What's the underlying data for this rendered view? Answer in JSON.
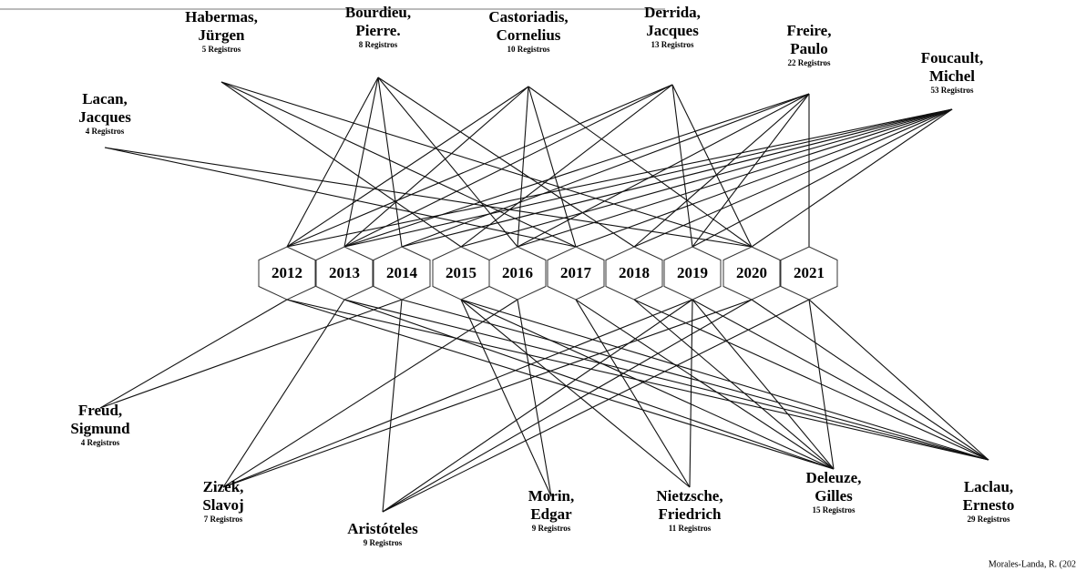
{
  "years": [
    "2012",
    "2013",
    "2014",
    "2015",
    "2016",
    "2017",
    "2018",
    "2019",
    "2020",
    "2021"
  ],
  "top_authors": [
    {
      "name": [
        "Lacan,",
        "Jacques"
      ],
      "records": "4 Registros",
      "links": [
        5,
        8
      ]
    },
    {
      "name": [
        "Habermas,",
        "Jürgen"
      ],
      "records": "5 Registros",
      "links": [
        3,
        5,
        8
      ]
    },
    {
      "name": [
        "Bourdieu,",
        "Pierre."
      ],
      "records": "8 Registros",
      "links": [
        0,
        1,
        2,
        4,
        6
      ]
    },
    {
      "name": [
        "Castoriadis,",
        "Cornelius"
      ],
      "records": "10 Registros",
      "links": [
        0,
        1,
        4,
        5,
        8
      ]
    },
    {
      "name": [
        "Derrida,",
        "Jacques"
      ],
      "records": "13 Registros",
      "links": [
        0,
        1,
        3,
        7,
        8
      ]
    },
    {
      "name": [
        "Freire,",
        "Paulo"
      ],
      "records": "22 Registros",
      "links": [
        1,
        2,
        4,
        6,
        7,
        9
      ]
    },
    {
      "name": [
        "Foucault,",
        "Michel"
      ],
      "records": "53 Registros",
      "links": [
        0,
        1,
        2,
        3,
        4,
        5,
        6,
        7,
        8
      ]
    }
  ],
  "bottom_authors": [
    {
      "name": [
        "Freud,",
        "Sigmund"
      ],
      "records": "4 Registros",
      "links": [
        0,
        2
      ]
    },
    {
      "name": [
        "Zizek,",
        "Slavoj"
      ],
      "records": "7 Registros",
      "links": [
        1,
        4,
        7,
        8
      ]
    },
    {
      "name": [
        "Aristóteles"
      ],
      "records": "9 Registros",
      "links": [
        2,
        7,
        8,
        9
      ]
    },
    {
      "name": [
        "Morin,",
        "Edgar"
      ],
      "records": "9 Registros",
      "links": [
        3,
        4
      ]
    },
    {
      "name": [
        "Nietzsche,",
        "Friedrich"
      ],
      "records": "11 Registros",
      "links": [
        3,
        5,
        7
      ]
    },
    {
      "name": [
        "Deleuze,",
        "Gilles"
      ],
      "records": "15 Registros",
      "links": [
        0,
        1,
        3,
        5,
        6,
        7,
        9
      ]
    },
    {
      "name": [
        "Laclau,",
        "Ernesto"
      ],
      "records": "29 Registros",
      "links": [
        0,
        1,
        2,
        3,
        6,
        7,
        8,
        9
      ]
    }
  ],
  "credit": "Morales-Landa, R. (202"
}
